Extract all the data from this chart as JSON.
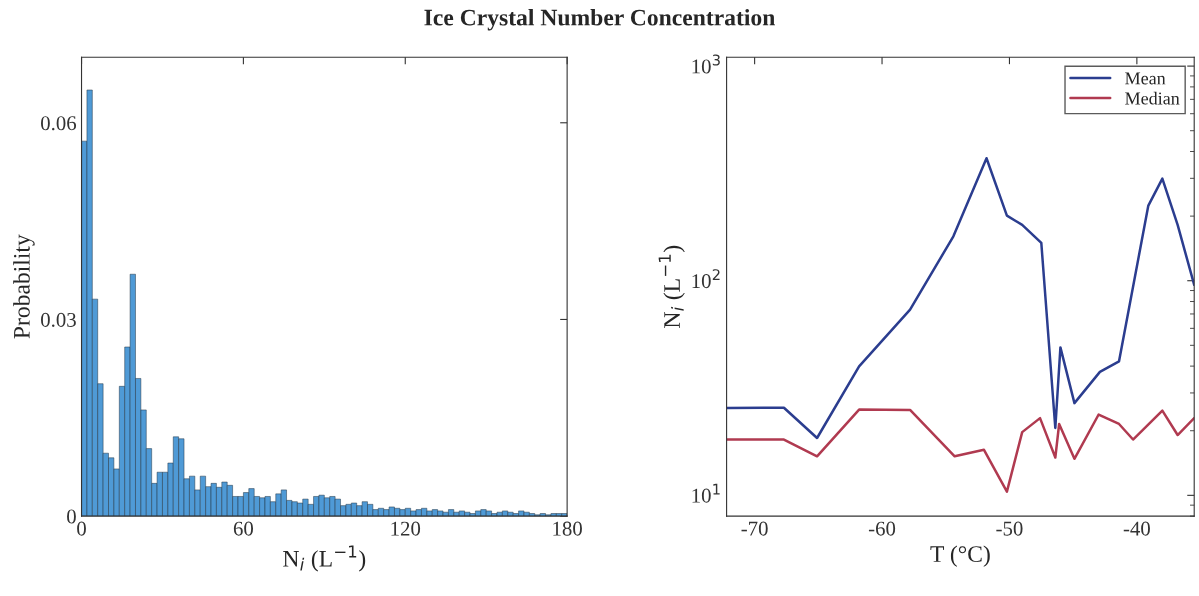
{
  "chart_data": [
    {
      "type": "histogram",
      "title": "Ice Crystal Number Concentration",
      "xlabel": "N$_{i}$ (L$^{−1}$)",
      "ylabel": "Probability",
      "color": "#4f9ad6",
      "bins": [
        0,
        2,
        4,
        6,
        8,
        10,
        12,
        14,
        16,
        18,
        20,
        22,
        24,
        26,
        28,
        30,
        32,
        34,
        36,
        38,
        40,
        42,
        44,
        46,
        48,
        50,
        52,
        54,
        56,
        58,
        60,
        62,
        64,
        66,
        68,
        70,
        72,
        74,
        76,
        78,
        80,
        82,
        84,
        86,
        88,
        90,
        92,
        94,
        96,
        98,
        100,
        102,
        104,
        106,
        108,
        110,
        112,
        114,
        116,
        118,
        120,
        122,
        124,
        126,
        128,
        130,
        132,
        134,
        136,
        138,
        140,
        142,
        144,
        146,
        148,
        150,
        152,
        154,
        156,
        158,
        160,
        162,
        164,
        166,
        168,
        170,
        172,
        174,
        176,
        178,
        180
      ],
      "values": [
        0.0572,
        0.065,
        0.0331,
        0.0202,
        0.0096,
        0.0089,
        0.0072,
        0.0198,
        0.0258,
        0.0369,
        0.021,
        0.0162,
        0.0103,
        0.005,
        0.0067,
        0.0067,
        0.0081,
        0.0121,
        0.0118,
        0.0057,
        0.0061,
        0.004,
        0.0061,
        0.0045,
        0.005,
        0.0044,
        0.0052,
        0.0047,
        0.003,
        0.003,
        0.0036,
        0.0042,
        0.003,
        0.0028,
        0.003,
        0.0022,
        0.0034,
        0.004,
        0.0024,
        0.0022,
        0.002,
        0.0026,
        0.0018,
        0.003,
        0.0032,
        0.0028,
        0.003,
        0.0026,
        0.0016,
        0.0018,
        0.002,
        0.0016,
        0.0022,
        0.0018,
        0.001,
        0.0012,
        0.001,
        0.0014,
        0.0012,
        0.001,
        0.0012,
        0.0008,
        0.001,
        0.0012,
        0.0008,
        0.001,
        0.0008,
        0.0006,
        0.001,
        0.0006,
        0.0008,
        0.0006,
        0.0004,
        0.0008,
        0.001,
        0.0008,
        0.0004,
        0.0006,
        0.0008,
        0.0006,
        0.0004,
        0.0008,
        0.0006,
        0.0004,
        0.0002,
        0.0004,
        0.0002,
        0.0004,
        0.0004,
        0.0004
      ],
      "xlim": [
        0,
        180
      ],
      "ylim": [
        0,
        0.07
      ],
      "xticks": [
        0,
        60,
        120,
        180
      ],
      "yticks": [
        0,
        {
          "value": 0.03,
          "label": "0.03"
        },
        {
          "value": 0.06,
          "label": "0.06"
        }
      ],
      "grid": false
    },
    {
      "type": "line",
      "xlabel": "T (°C)",
      "ylabel": "N$_{i}$ (L$^{−1}$)",
      "log": "y",
      "legend": "top right",
      "grid": false,
      "xlim": [
        -72.2,
        -35.5
      ],
      "ylim": [
        8,
        1100
      ],
      "xticks": [
        -70,
        -60,
        -50,
        -40
      ],
      "yticks": [
        {
          "value": 10,
          "label": "10$^{1}$"
        },
        {
          "value": 100,
          "label": "10$^{2}$"
        },
        {
          "value": 1000,
          "label": "10$^{3}$"
        }
      ],
      "series": [
        {
          "name": "Mean",
          "color": "#2b3d8f",
          "x": [
            -72.2,
            -67.7,
            -65.1,
            -61.8,
            -57.8,
            -54.4,
            -51.8,
            -50.2,
            -49.0,
            -47.5,
            -46.4,
            -46.0,
            -44.9,
            -42.9,
            -41.4,
            -39.1,
            -38.0,
            -36.8,
            -35.5
          ],
          "values": [
            25.5,
            25.6,
            18.5,
            39.9,
            73.3,
            161,
            372,
            201,
            182,
            150,
            20.6,
            48.9,
            26.9,
            37.6,
            42.1,
            224,
            299,
            182,
            95.7
          ]
        },
        {
          "name": "Median",
          "color": "#b03a50",
          "x": [
            -72.2,
            -67.7,
            -65.1,
            -61.8,
            -57.8,
            -54.3,
            -52.0,
            -50.2,
            -49.0,
            -47.6,
            -46.4,
            -46.1,
            -44.9,
            -43.0,
            -41.4,
            -40.3,
            -38.0,
            -36.8,
            -35.5
          ],
          "values": [
            18.2,
            18.2,
            15.2,
            25.1,
            25.0,
            15.2,
            16.3,
            10.4,
            19.7,
            22.9,
            15.0,
            21.5,
            14.8,
            23.8,
            21.5,
            18.2,
            24.8,
            19.1,
            22.9
          ]
        }
      ]
    }
  ]
}
